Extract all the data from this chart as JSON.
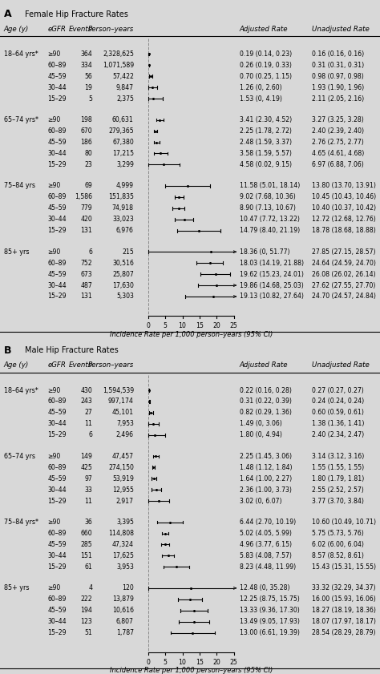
{
  "panel_A": {
    "title": "Female Hip Fracture Rates",
    "panel_label": "A",
    "groups": [
      {
        "age_label": "18–64 yrs*",
        "rows": [
          {
            "egfr": "≥90",
            "events": "364",
            "person_years": "2,328,625",
            "est": 0.19,
            "lo": 0.14,
            "hi": 0.23,
            "adj_rate": "0.19 (0.14, 0.23)",
            "unadj_rate": "0.16 (0.16, 0.16)"
          },
          {
            "egfr": "60–89",
            "events": "334",
            "person_years": "1,071,589",
            "est": 0.26,
            "lo": 0.19,
            "hi": 0.33,
            "adj_rate": "0.26 (0.19, 0.33)",
            "unadj_rate": "0.31 (0.31, 0.31)"
          },
          {
            "egfr": "45–59",
            "events": "56",
            "person_years": "57,422",
            "est": 0.7,
            "lo": 0.25,
            "hi": 1.15,
            "adj_rate": "0.70 (0.25, 1.15)",
            "unadj_rate": "0.98 (0.97, 0.98)"
          },
          {
            "egfr": "30–44",
            "events": "19",
            "person_years": "9,847",
            "est": 1.26,
            "lo": 0.0,
            "hi": 2.6,
            "adj_rate": "1.26 (0, 2.60)",
            "unadj_rate": "1.93 (1.90, 1.96)"
          },
          {
            "egfr": "15–29",
            "events": "5",
            "person_years": "2,375",
            "est": 1.53,
            "lo": 0.0,
            "hi": 4.19,
            "adj_rate": "1.53 (0, 4.19)",
            "unadj_rate": "2.11 (2.05, 2.16)"
          }
        ]
      },
      {
        "age_label": "65–74 yrs*",
        "rows": [
          {
            "egfr": "≥90",
            "events": "198",
            "person_years": "60,631",
            "est": 3.41,
            "lo": 2.3,
            "hi": 4.52,
            "adj_rate": "3.41 (2.30, 4.52)",
            "unadj_rate": "3.27 (3.25, 3.28)"
          },
          {
            "egfr": "60–89",
            "events": "670",
            "person_years": "279,365",
            "est": 2.25,
            "lo": 1.78,
            "hi": 2.72,
            "adj_rate": "2.25 (1.78, 2.72)",
            "unadj_rate": "2.40 (2.39, 2.40)"
          },
          {
            "egfr": "45–59",
            "events": "186",
            "person_years": "67,380",
            "est": 2.48,
            "lo": 1.59,
            "hi": 3.37,
            "adj_rate": "2.48 (1.59, 3.37)",
            "unadj_rate": "2.76 (2.75, 2.77)"
          },
          {
            "egfr": "30–44",
            "events": "80",
            "person_years": "17,215",
            "est": 3.58,
            "lo": 1.59,
            "hi": 5.57,
            "adj_rate": "3.58 (1.59, 5.57)",
            "unadj_rate": "4.65 (4.61, 4.68)"
          },
          {
            "egfr": "15–29",
            "events": "23",
            "person_years": "3,299",
            "est": 4.58,
            "lo": 0.02,
            "hi": 9.15,
            "adj_rate": "4.58 (0.02, 9.15)",
            "unadj_rate": "6.97 (6.88, 7.06)"
          }
        ]
      },
      {
        "age_label": "75–84 yrs",
        "rows": [
          {
            "egfr": "≥90",
            "events": "69",
            "person_years": "4,999",
            "est": 11.58,
            "lo": 5.01,
            "hi": 18.14,
            "adj_rate": "11.58 (5.01, 18.14)",
            "unadj_rate": "13.80 (13.70, 13.91)"
          },
          {
            "egfr": "60–89",
            "events": "1,586",
            "person_years": "151,835",
            "est": 9.02,
            "lo": 7.68,
            "hi": 10.36,
            "adj_rate": "9.02 (7.68, 10.36)",
            "unadj_rate": "10.45 (10.43, 10.46)"
          },
          {
            "egfr": "45–59",
            "events": "779",
            "person_years": "74,918",
            "est": 8.9,
            "lo": 7.13,
            "hi": 10.67,
            "adj_rate": "8.90 (7.13, 10.67)",
            "unadj_rate": "10.40 (10.37, 10.42)"
          },
          {
            "egfr": "30–44",
            "events": "420",
            "person_years": "33,023",
            "est": 10.47,
            "lo": 7.72,
            "hi": 13.22,
            "adj_rate": "10.47 (7.72, 13.22)",
            "unadj_rate": "12.72 (12.68, 12.76)"
          },
          {
            "egfr": "15–29",
            "events": "131",
            "person_years": "6,976",
            "est": 14.79,
            "lo": 8.4,
            "hi": 21.19,
            "adj_rate": "14.79 (8.40, 21.19)",
            "unadj_rate": "18.78 (18.68, 18.88)"
          }
        ]
      },
      {
        "age_label": "85+ yrs",
        "rows": [
          {
            "egfr": "≥90",
            "events": "6",
            "person_years": "215",
            "est": 18.36,
            "lo": 0.0,
            "hi": 51.77,
            "adj_rate": "18.36 (0, 51.77)",
            "unadj_rate": "27.85 (27.15, 28.57)",
            "arrow_right": true
          },
          {
            "egfr": "60–89",
            "events": "752",
            "person_years": "30,516",
            "est": 18.03,
            "lo": 14.19,
            "hi": 21.88,
            "adj_rate": "18.03 (14.19, 21.88)",
            "unadj_rate": "24.64 (24.59, 24.70)"
          },
          {
            "egfr": "45–59",
            "events": "673",
            "person_years": "25,807",
            "est": 19.62,
            "lo": 15.23,
            "hi": 24.01,
            "adj_rate": "19.62 (15.23, 24.01)",
            "unadj_rate": "26.08 (26.02, 26.14)"
          },
          {
            "egfr": "30–44",
            "events": "487",
            "person_years": "17,630",
            "est": 19.86,
            "lo": 14.68,
            "hi": 25.03,
            "adj_rate": "19.86 (14.68, 25.03)",
            "unadj_rate": "27.62 (27.55, 27.70)",
            "arrow_right": true
          },
          {
            "egfr": "15–29",
            "events": "131",
            "person_years": "5,303",
            "est": 19.13,
            "lo": 10.82,
            "hi": 27.64,
            "adj_rate": "19.13 (10.82, 27.64)",
            "unadj_rate": "24.70 (24.57, 24.84)",
            "arrow_right": true
          }
        ]
      }
    ]
  },
  "panel_B": {
    "title": "Male Hip Fracture Rates",
    "panel_label": "B",
    "groups": [
      {
        "age_label": "18–64 yrs*",
        "rows": [
          {
            "egfr": "≥90",
            "events": "430",
            "person_years": "1,594,539",
            "est": 0.22,
            "lo": 0.16,
            "hi": 0.28,
            "adj_rate": "0.22 (0.16, 0.28)",
            "unadj_rate": "0.27 (0.27, 0.27)"
          },
          {
            "egfr": "60–89",
            "events": "243",
            "person_years": "997,174",
            "est": 0.31,
            "lo": 0.22,
            "hi": 0.39,
            "adj_rate": "0.31 (0.22, 0.39)",
            "unadj_rate": "0.24 (0.24, 0.24)"
          },
          {
            "egfr": "45–59",
            "events": "27",
            "person_years": "45,101",
            "est": 0.82,
            "lo": 0.29,
            "hi": 1.36,
            "adj_rate": "0.82 (0.29, 1.36)",
            "unadj_rate": "0.60 (0.59, 0.61)"
          },
          {
            "egfr": "30–44",
            "events": "11",
            "person_years": "7,953",
            "est": 1.49,
            "lo": 0.0,
            "hi": 3.06,
            "adj_rate": "1.49 (0, 3.06)",
            "unadj_rate": "1.38 (1.36, 1.41)"
          },
          {
            "egfr": "15–29",
            "events": "6",
            "person_years": "2,496",
            "est": 1.8,
            "lo": 0.0,
            "hi": 4.94,
            "adj_rate": "1.80 (0, 4.94)",
            "unadj_rate": "2.40 (2.34, 2.47)"
          }
        ]
      },
      {
        "age_label": "65–74 yrs",
        "rows": [
          {
            "egfr": "≥90",
            "events": "149",
            "person_years": "47,457",
            "est": 2.25,
            "lo": 1.45,
            "hi": 3.06,
            "adj_rate": "2.25 (1.45, 3.06)",
            "unadj_rate": "3.14 (3.12, 3.16)"
          },
          {
            "egfr": "60–89",
            "events": "425",
            "person_years": "274,150",
            "est": 1.48,
            "lo": 1.12,
            "hi": 1.84,
            "adj_rate": "1.48 (1.12, 1.84)",
            "unadj_rate": "1.55 (1.55, 1.55)"
          },
          {
            "egfr": "45–59",
            "events": "97",
            "person_years": "53,919",
            "est": 1.64,
            "lo": 1.0,
            "hi": 2.27,
            "adj_rate": "1.64 (1.00, 2.27)",
            "unadj_rate": "1.80 (1.79, 1.81)"
          },
          {
            "egfr": "30–44",
            "events": "33",
            "person_years": "12,955",
            "est": 2.36,
            "lo": 1.0,
            "hi": 3.73,
            "adj_rate": "2.36 (1.00, 3.73)",
            "unadj_rate": "2.55 (2.52, 2.57)"
          },
          {
            "egfr": "15–29",
            "events": "11",
            "person_years": "2,917",
            "est": 3.02,
            "lo": 0.0,
            "hi": 6.07,
            "adj_rate": "3.02 (0, 6.07)",
            "unadj_rate": "3.77 (3.70, 3.84)"
          }
        ]
      },
      {
        "age_label": "75–84 yrs*",
        "rows": [
          {
            "egfr": "≥90",
            "events": "36",
            "person_years": "3,395",
            "est": 6.44,
            "lo": 2.7,
            "hi": 10.19,
            "adj_rate": "6.44 (2.70, 10.19)",
            "unadj_rate": "10.60 (10.49, 10.71)"
          },
          {
            "egfr": "60–89",
            "events": "660",
            "person_years": "114,808",
            "est": 5.02,
            "lo": 4.05,
            "hi": 5.99,
            "adj_rate": "5.02 (4.05, 5.99)",
            "unadj_rate": "5.75 (5.73, 5.76)"
          },
          {
            "egfr": "45–59",
            "events": "285",
            "person_years": "47,324",
            "est": 4.96,
            "lo": 3.77,
            "hi": 6.15,
            "adj_rate": "4.96 (3.77, 6.15)",
            "unadj_rate": "6.02 (6.00, 6.04)"
          },
          {
            "egfr": "30–44",
            "events": "151",
            "person_years": "17,625",
            "est": 5.83,
            "lo": 4.08,
            "hi": 7.57,
            "adj_rate": "5.83 (4.08, 7.57)",
            "unadj_rate": "8.57 (8.52, 8.61)"
          },
          {
            "egfr": "15–29",
            "events": "61",
            "person_years": "3,953",
            "est": 8.23,
            "lo": 4.48,
            "hi": 11.99,
            "adj_rate": "8.23 (4.48, 11.99)",
            "unadj_rate": "15.43 (15.31, 15.55)"
          }
        ]
      },
      {
        "age_label": "85+ yrs",
        "rows": [
          {
            "egfr": "≥90",
            "events": "4",
            "person_years": "120",
            "est": 12.48,
            "lo": 0.0,
            "hi": 35.28,
            "adj_rate": "12.48 (0, 35.28)",
            "unadj_rate": "33.32 (32.29, 34.37)",
            "arrow_right": true
          },
          {
            "egfr": "60–89",
            "events": "222",
            "person_years": "13,879",
            "est": 12.25,
            "lo": 8.75,
            "hi": 15.75,
            "adj_rate": "12.25 (8.75, 15.75)",
            "unadj_rate": "16.00 (15.93, 16.06)"
          },
          {
            "egfr": "45–59",
            "events": "194",
            "person_years": "10,616",
            "est": 13.33,
            "lo": 9.36,
            "hi": 17.3,
            "adj_rate": "13.33 (9.36, 17.30)",
            "unadj_rate": "18.27 (18.19, 18.36)"
          },
          {
            "egfr": "30–44",
            "events": "123",
            "person_years": "6,807",
            "est": 13.49,
            "lo": 9.05,
            "hi": 17.93,
            "adj_rate": "13.49 (9.05, 17.93)",
            "unadj_rate": "18.07 (17.97, 18.17)"
          },
          {
            "egfr": "15–29",
            "events": "51",
            "person_years": "1,787",
            "est": 13.0,
            "lo": 6.61,
            "hi": 19.39,
            "adj_rate": "13.00 (6.61, 19.39)",
            "unadj_rate": "28.54 (28.29, 28.79)"
          }
        ]
      }
    ]
  },
  "xlabel": "Incidence Rate per 1,000 person–years (95% CI)",
  "xlim": [
    0,
    25
  ],
  "xticks": [
    0,
    5,
    10,
    15,
    20,
    25
  ],
  "bg_color": "#d8d8d8",
  "plot_bg": "#ffffff"
}
